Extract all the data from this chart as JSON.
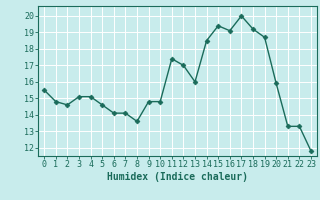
{
  "x": [
    0,
    1,
    2,
    3,
    4,
    5,
    6,
    7,
    8,
    9,
    10,
    11,
    12,
    13,
    14,
    15,
    16,
    17,
    18,
    19,
    20,
    21,
    22,
    23
  ],
  "y": [
    15.5,
    14.8,
    14.6,
    15.1,
    15.1,
    14.6,
    14.1,
    14.1,
    13.6,
    14.8,
    14.8,
    17.4,
    17.0,
    16.0,
    18.5,
    19.4,
    19.1,
    20.0,
    19.2,
    18.7,
    15.9,
    13.3,
    13.3,
    11.8
  ],
  "line_color": "#1a6b5a",
  "marker_color": "#1a6b5a",
  "background_color": "#c8ecec",
  "grid_color": "#ffffff",
  "xlabel": "Humidex (Indice chaleur)",
  "xlabel_fontsize": 7,
  "tick_fontsize": 6,
  "xlim": [
    -0.5,
    23.5
  ],
  "ylim": [
    11.5,
    20.6
  ],
  "yticks": [
    12,
    13,
    14,
    15,
    16,
    17,
    18,
    19,
    20
  ],
  "xticks": [
    0,
    1,
    2,
    3,
    4,
    5,
    6,
    7,
    8,
    9,
    10,
    11,
    12,
    13,
    14,
    15,
    16,
    17,
    18,
    19,
    20,
    21,
    22,
    23
  ]
}
